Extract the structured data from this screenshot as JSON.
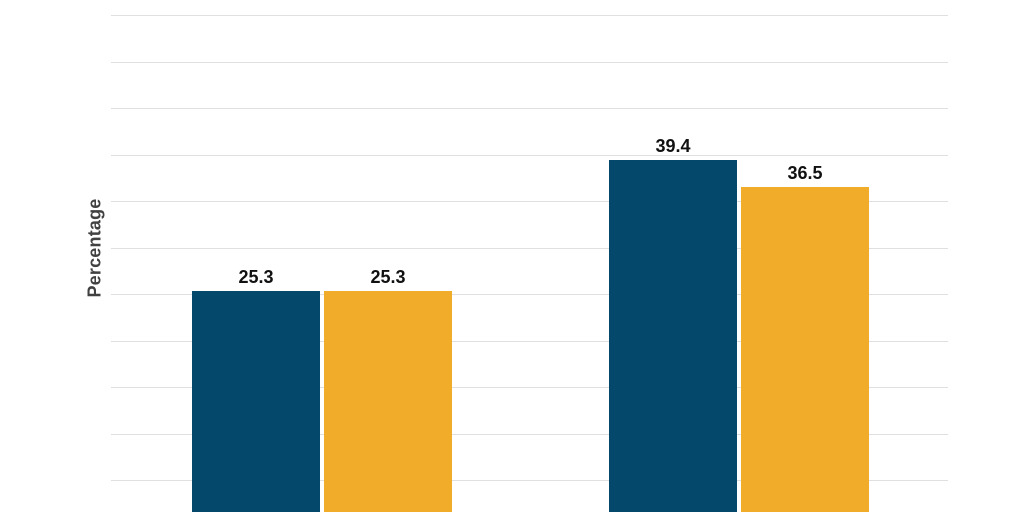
{
  "chart_data": {
    "type": "bar",
    "title": "",
    "ylabel": "Percentage",
    "xlabel": "",
    "categories": [
      "",
      ""
    ],
    "series": [
      {
        "name": "",
        "color": "#04486c",
        "values": [
          25.3,
          39.4
        ]
      },
      {
        "name": "",
        "color": "#f1ad29",
        "values": [
          25.3,
          36.5
        ]
      }
    ],
    "data_labels": [
      [
        "25.3",
        "39.4"
      ],
      [
        "25.3",
        "36.5"
      ]
    ],
    "ylim": [
      0,
      55
    ],
    "gridline_values": [
      5,
      10,
      15,
      20,
      25,
      30,
      35,
      40,
      45,
      50,
      55
    ],
    "grid": true,
    "y_tick_labels_visible": false,
    "x_labels_visible": false,
    "legend_visible": false,
    "cropped_bottom": true,
    "colors": {
      "background": "#ffffff",
      "gridline": "#e0e0e0",
      "data_label_text": "#111111",
      "axis_title_text": "#414142"
    }
  }
}
